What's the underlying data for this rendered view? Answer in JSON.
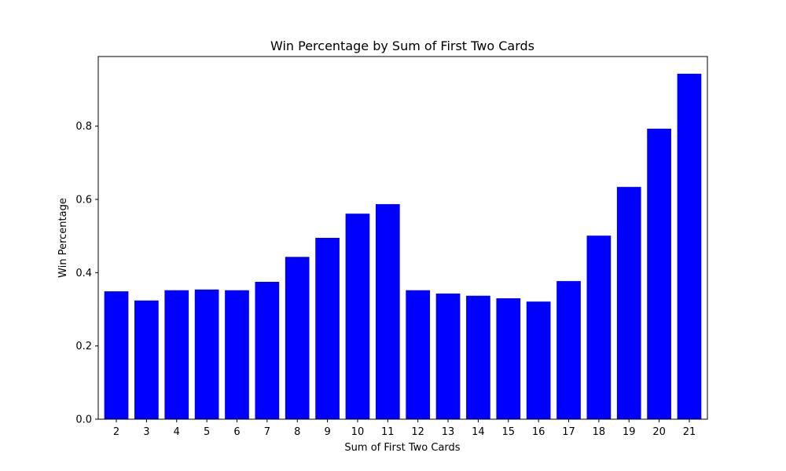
{
  "chart_data": {
    "type": "bar",
    "title": "Win Percentage by Sum of First Two Cards",
    "xlabel": "Sum of First Two Cards",
    "ylabel": "Win Percentage",
    "categories": [
      "2",
      "3",
      "4",
      "5",
      "6",
      "7",
      "8",
      "9",
      "10",
      "11",
      "12",
      "13",
      "14",
      "15",
      "16",
      "17",
      "18",
      "19",
      "20",
      "21"
    ],
    "values": [
      0.349,
      0.324,
      0.352,
      0.354,
      0.352,
      0.375,
      0.443,
      0.495,
      0.561,
      0.587,
      0.352,
      0.343,
      0.337,
      0.33,
      0.321,
      0.377,
      0.501,
      0.634,
      0.793,
      0.943
    ],
    "ylim": [
      0,
      0.99
    ],
    "yticks": [
      0.0,
      0.2,
      0.4,
      0.6,
      0.8
    ],
    "ytick_labels": [
      "0.0",
      "0.2",
      "0.4",
      "0.6",
      "0.8"
    ],
    "bar_color": "#0000ff",
    "grid": false
  }
}
